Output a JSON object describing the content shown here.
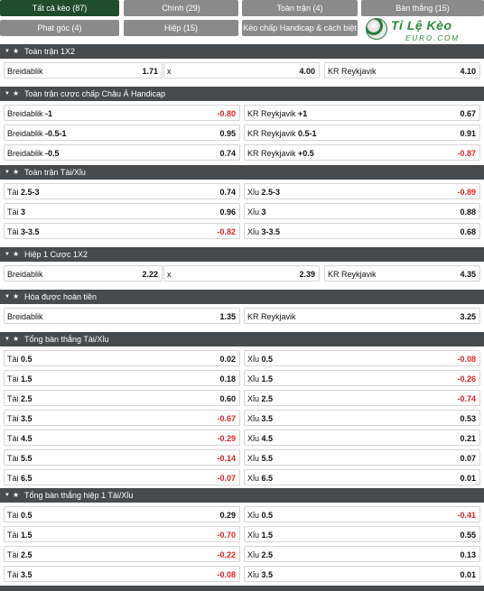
{
  "tabs": [
    {
      "label": "Tất cả kèo (87)",
      "active": true
    },
    {
      "label": "Chính (29)"
    },
    {
      "label": "Toàn trận (4)"
    },
    {
      "label": "Bàn thắng (15)"
    },
    {
      "label": "Phạt góc (4)"
    },
    {
      "label": "Hiệp (15)"
    },
    {
      "label": "Kèo chấp Handicap & cách biệt (3)"
    }
  ],
  "logo": {
    "brand": "Tỉ Lệ Kèo",
    "sub": "EURO.COM"
  },
  "sections": [
    {
      "title": "Toàn trận 1X2",
      "rows": [
        [
          {
            "label": "Breidablik",
            "odd": "1.71"
          },
          {
            "label": "x",
            "odd": "4.00"
          },
          {
            "label": "KR Reykjavik",
            "odd": "4.10"
          }
        ]
      ]
    },
    {
      "title": "Toàn trận cược chấp Châu Á Handicap",
      "rows": [
        [
          {
            "label": "Breidablik",
            "hl": "-1",
            "odd": "-0.80"
          },
          {
            "label": "KR Reykjavik",
            "hl": "+1",
            "odd": "0.67"
          }
        ],
        [
          {
            "label": "Breidablik",
            "hl": "-0.5-1",
            "odd": "0.95"
          },
          {
            "label": "KR Reykjavik",
            "hl": "0.5-1",
            "odd": "0.91"
          }
        ],
        [
          {
            "label": "Breidablik",
            "hl": "-0.5",
            "odd": "0.74"
          },
          {
            "label": "KR Reykjavik",
            "hl": "+0.5",
            "odd": "-0.87"
          }
        ]
      ]
    },
    {
      "title": "Toàn trận Tài/Xỉu",
      "rows": [
        [
          {
            "label": "Tài",
            "hl": "2.5-3",
            "odd": "0.74"
          },
          {
            "label": "Xỉu",
            "hl": "2.5-3",
            "odd": "-0.89"
          }
        ],
        [
          {
            "label": "Tài",
            "hl": "3",
            "odd": "0.96"
          },
          {
            "label": "Xỉu",
            "hl": "3",
            "odd": "0.88"
          }
        ],
        [
          {
            "label": "Tài",
            "hl": "3-3.5",
            "odd": "-0.82"
          },
          {
            "label": "Xỉu",
            "hl": "3-3.5",
            "odd": "0.68"
          }
        ]
      ]
    },
    {
      "title": "Hiệp 1 Cược 1X2",
      "rows": [
        [
          {
            "label": "Breidablik",
            "odd": "2.22"
          },
          {
            "label": "x",
            "odd": "2.39"
          },
          {
            "label": "KR Reykjavik",
            "odd": "4.35"
          }
        ]
      ]
    },
    {
      "title": "Hòa được hoàn tiền",
      "rows": [
        [
          {
            "label": "Breidablik",
            "odd": "1.35"
          },
          {
            "label": "KR Reykjavik",
            "odd": "3.25"
          }
        ]
      ]
    },
    {
      "title": "Tổng bàn thắng Tài/Xỉu",
      "rows": [
        [
          {
            "label": "Tài",
            "hl": "0.5",
            "odd": "0.02"
          },
          {
            "label": "Xỉu",
            "hl": "0.5",
            "odd": "-0.08"
          }
        ],
        [
          {
            "label": "Tài",
            "hl": "1.5",
            "odd": "0.18"
          },
          {
            "label": "Xỉu",
            "hl": "1.5",
            "odd": "-0.26"
          }
        ],
        [
          {
            "label": "Tài",
            "hl": "2.5",
            "odd": "0.60"
          },
          {
            "label": "Xỉu",
            "hl": "2.5",
            "odd": "-0.74"
          }
        ],
        [
          {
            "label": "Tài",
            "hl": "3.5",
            "odd": "-0.67"
          },
          {
            "label": "Xỉu",
            "hl": "3.5",
            "odd": "0.53"
          }
        ],
        [
          {
            "label": "Tài",
            "hl": "4.5",
            "odd": "-0.29"
          },
          {
            "label": "Xỉu",
            "hl": "4.5",
            "odd": "0.21"
          }
        ],
        [
          {
            "label": "Tài",
            "hl": "5.5",
            "odd": "-0.14"
          },
          {
            "label": "Xỉu",
            "hl": "5.5",
            "odd": "0.07"
          }
        ],
        [
          {
            "label": "Tài",
            "hl": "6.5",
            "odd": "-0.07"
          },
          {
            "label": "Xỉu",
            "hl": "6.5",
            "odd": "0.01"
          }
        ]
      ]
    },
    {
      "title": "Tổng bàn thắng hiệp 1 Tài/Xỉu",
      "rows": [
        [
          {
            "label": "Tài",
            "hl": "0.5",
            "odd": "0.29"
          },
          {
            "label": "Xỉu",
            "hl": "0.5",
            "odd": "-0.41"
          }
        ],
        [
          {
            "label": "Tài",
            "hl": "1.5",
            "odd": "-0.70"
          },
          {
            "label": "Xỉu",
            "hl": "1.5",
            "odd": "0.55"
          }
        ],
        [
          {
            "label": "Tài",
            "hl": "2.5",
            "odd": "-0.22"
          },
          {
            "label": "Xỉu",
            "hl": "2.5",
            "odd": "0.13"
          }
        ],
        [
          {
            "label": "Tài",
            "hl": "3.5",
            "odd": "-0.08"
          },
          {
            "label": "Xỉu",
            "hl": "3.5",
            "odd": "0.01"
          }
        ]
      ]
    }
  ],
  "icons": {
    "collapse": "chevron-down-icon",
    "favorite": "star-icon"
  }
}
